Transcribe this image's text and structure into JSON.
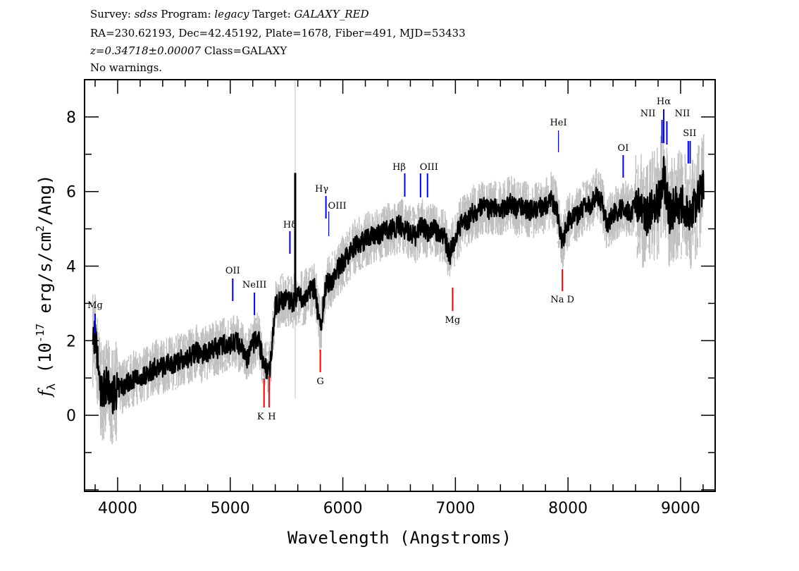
{
  "header": {
    "survey_label": "Survey:",
    "survey": "sdss",
    "program_label": "Program:",
    "program": "legacy",
    "target_label": "Target:",
    "target": "GALAXY_RED",
    "line2": "RA=230.62193, Dec=42.45192, Plate=1678, Fiber=491, MJD=53433",
    "redshift": "z=0.34718±0.00007",
    "class": "Class=GALAXY",
    "warnings": "No warnings."
  },
  "chart_data": {
    "type": "line",
    "xlabel": "Wavelength (Angstroms)",
    "ylabel_prefix": "f",
    "ylabel_sub": "λ",
    "ylabel_mid": " (10",
    "ylabel_exp": "-17",
    "ylabel_mid2": " erg/s/cm",
    "ylabel_exp2": "2",
    "ylabel_end": "/Ang)",
    "xlim": [
      3706,
      9307
    ],
    "ylim": [
      -2.04,
      9.0
    ],
    "xticks": [
      4000,
      5000,
      6000,
      7000,
      8000,
      9000
    ],
    "yticks": [
      0,
      2,
      4,
      6,
      8
    ],
    "grid": false,
    "colors": {
      "flux": "#000000",
      "error": "#c0c0c0",
      "emission": "#0000ff",
      "absorption": "#ff0000"
    },
    "series": {
      "x_start": 3800,
      "x_step": 50,
      "flux": [
        2.1,
        0.6,
        0.8,
        0.5,
        0.7,
        0.8,
        0.9,
        1.0,
        1.0,
        1.1,
        1.2,
        1.3,
        1.3,
        1.4,
        1.4,
        1.5,
        1.5,
        1.6,
        1.7,
        1.6,
        1.7,
        1.8,
        1.8,
        1.9,
        1.9,
        2.0,
        1.8,
        1.5,
        1.9,
        2.1,
        1.3,
        1.2,
        2.9,
        3.1,
        3.1,
        3.0,
        3.2,
        3.1,
        3.3,
        3.4,
        2.3,
        3.5,
        3.6,
        3.9,
        4.1,
        4.3,
        4.5,
        4.6,
        4.7,
        4.8,
        4.8,
        4.9,
        5.0,
        5.0,
        5.1,
        5.0,
        4.9,
        4.8,
        5.1,
        4.9,
        5.0,
        4.9,
        4.8,
        4.3,
        4.8,
        5.1,
        5.2,
        5.4,
        5.5,
        5.6,
        5.5,
        5.6,
        5.5,
        5.6,
        5.7,
        5.5,
        5.6,
        5.5,
        5.5,
        5.6,
        5.6,
        5.8,
        5.5,
        4.6,
        5.2,
        5.3,
        5.4,
        5.6,
        5.6,
        5.9,
        5.7,
        5.1,
        5.4,
        5.5,
        5.6,
        5.4,
        5.7,
        5.5,
        5.3,
        5.6,
        5.7,
        6.4,
        5.4,
        5.6,
        5.7,
        5.5,
        5.4,
        5.8,
        6.2
      ],
      "sky_spike": {
        "x": 5577,
        "flux": 6.5
      }
    },
    "lines": [
      {
        "label": "Mg",
        "wavelength": 3800,
        "type": "emission"
      },
      {
        "label": "OII",
        "wavelength": 5022,
        "type": "emission"
      },
      {
        "label": "NeIII",
        "wavelength": 5215,
        "type": "emission"
      },
      {
        "label": "Hδ",
        "wavelength": 5530,
        "type": "emission"
      },
      {
        "label": "Hγ",
        "wavelength": 5850,
        "type": "emission"
      },
      {
        "label": "OIII",
        "wavelength": 5875,
        "type": "emission"
      },
      {
        "label": "Hβ",
        "wavelength": 6550,
        "type": "emission"
      },
      {
        "label": "OIII",
        "wavelength": 6690,
        "type": "emission"
      },
      {
        "label": "",
        "wavelength": 6752,
        "type": "emission"
      },
      {
        "label": "HeI",
        "wavelength": 7915,
        "type": "emission"
      },
      {
        "label": "OI",
        "wavelength": 8490,
        "type": "emission"
      },
      {
        "label": "NII",
        "wavelength": 8835,
        "type": "emission"
      },
      {
        "label": "Hα",
        "wavelength": 8850,
        "type": "emission"
      },
      {
        "label": "NII",
        "wavelength": 8878,
        "type": "emission"
      },
      {
        "label": "SII",
        "wavelength": 9068,
        "type": "emission"
      },
      {
        "label": "",
        "wavelength": 9085,
        "type": "emission"
      },
      {
        "label": "K",
        "wavelength": 5300,
        "type": "absorption"
      },
      {
        "label": "H",
        "wavelength": 5345,
        "type": "absorption"
      },
      {
        "label": "G",
        "wavelength": 5800,
        "type": "absorption"
      },
      {
        "label": "Mg",
        "wavelength": 6975,
        "type": "absorption"
      },
      {
        "label": "Na D",
        "wavelength": 7950,
        "type": "absorption"
      }
    ]
  }
}
